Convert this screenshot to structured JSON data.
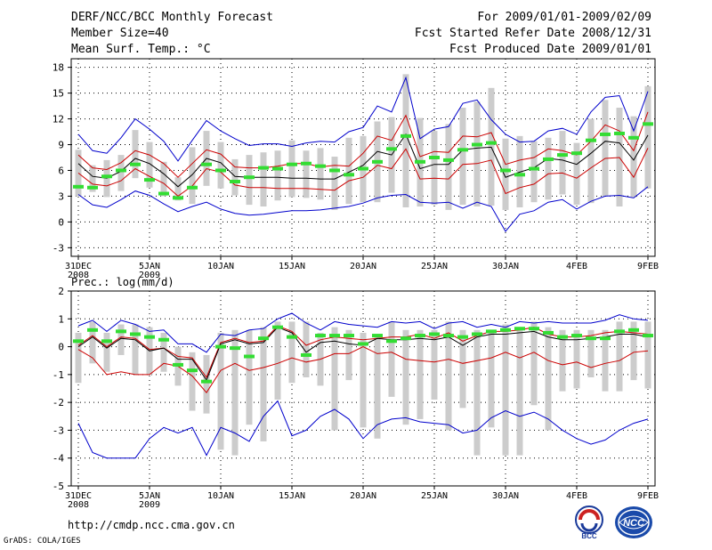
{
  "header": {
    "title": "DERF/NCC/BCC Monthly Forecast",
    "member_size": "Member Size=40",
    "variable": "Mean Surf. Temp.: °C",
    "period": "For 2009/01/01-2009/02/09",
    "refer_date": "Fcst Started Refer Date 2008/12/31",
    "produced_date": "Fcst Produced Date 2009/01/01"
  },
  "footer": {
    "url": "http://cmdp.ncc.cma.gov.cn",
    "grads": "GrADS: COLA/IGES",
    "logo_left_text": "BCC",
    "logo_right_text": "NCC"
  },
  "colors": {
    "ensemble_mean": "#000000",
    "spread_band": "#cc0000",
    "extreme_band": "#0000cc",
    "observed_bar": "#cccccc",
    "climatology_mark": "#33dd33"
  },
  "x_tick_labels": [
    "31DEC\n2008",
    "5JAN\n2009",
    "10JAN",
    "15JAN",
    "20JAN",
    "25JAN",
    "30JAN",
    "4FEB",
    "9FEB"
  ],
  "chart_data": [
    {
      "type": "line",
      "title": "Mean Surf. Temp.: °C",
      "ylim": [
        -4,
        19
      ],
      "yticks": [
        -3,
        0,
        3,
        6,
        9,
        12,
        15,
        18
      ],
      "days": 41,
      "series": [
        {
          "name": "max",
          "values": [
            10.2,
            8.3,
            8.0,
            9.8,
            12.0,
            10.8,
            9.4,
            7.1,
            9.5,
            11.8,
            10.6,
            9.7,
            8.9,
            9.1,
            9.1,
            8.8,
            9.2,
            9.4,
            9.3,
            10.5,
            11.0,
            13.5,
            12.8,
            16.8,
            9.7,
            10.8,
            11.1,
            13.8,
            14.2,
            11.9,
            10.2,
            9.3,
            9.4,
            10.6,
            10.9,
            10.2,
            12.8,
            14.5,
            14.7,
            10.6,
            15.2
          ]
        },
        {
          "name": "upper",
          "values": [
            7.8,
            6.3,
            6.1,
            6.9,
            8.3,
            7.8,
            6.8,
            5.2,
            6.8,
            8.4,
            7.9,
            6.4,
            6.3,
            6.3,
            6.5,
            6.8,
            6.8,
            6.4,
            6.6,
            6.5,
            8.0,
            10.0,
            9.5,
            12.4,
            7.6,
            8.2,
            8.1,
            10.0,
            9.9,
            10.4,
            6.7,
            7.2,
            7.5,
            8.5,
            8.3,
            7.8,
            9.4,
            11.3,
            10.6,
            8.3,
            12.8
          ]
        },
        {
          "name": "mean",
          "values": [
            6.8,
            5.3,
            5.1,
            5.9,
            7.4,
            6.8,
            5.6,
            4.1,
            5.5,
            7.4,
            6.9,
            5.3,
            5.2,
            5.2,
            5.2,
            5.1,
            5.1,
            5.0,
            5.0,
            5.8,
            6.6,
            8.2,
            7.8,
            10.2,
            6.2,
            6.7,
            6.7,
            8.4,
            8.6,
            8.7,
            5.2,
            5.8,
            6.3,
            7.4,
            7.2,
            6.7,
            8.0,
            9.4,
            9.2,
            7.2,
            10.1
          ]
        },
        {
          "name": "lower",
          "values": [
            5.7,
            4.4,
            4.2,
            4.8,
            6.2,
            5.3,
            4.5,
            3.0,
            4.2,
            6.2,
            5.8,
            4.3,
            4.0,
            4.0,
            3.9,
            3.9,
            3.9,
            3.8,
            3.7,
            4.8,
            5.2,
            6.6,
            6.2,
            8.5,
            5.0,
            5.1,
            5.0,
            6.7,
            6.8,
            7.2,
            3.3,
            4.0,
            4.4,
            5.6,
            5.7,
            5.1,
            6.3,
            7.4,
            7.5,
            5.2,
            8.6
          ]
        },
        {
          "name": "min",
          "values": [
            3.2,
            2.0,
            1.7,
            2.6,
            3.6,
            3.1,
            2.1,
            1.2,
            1.8,
            2.3,
            1.5,
            1.0,
            0.8,
            0.9,
            1.1,
            1.3,
            1.3,
            1.4,
            1.6,
            1.8,
            2.2,
            2.8,
            3.1,
            3.2,
            2.3,
            2.2,
            2.3,
            1.6,
            2.3,
            1.8,
            -1.1,
            0.9,
            1.3,
            2.3,
            2.6,
            1.5,
            2.4,
            3.0,
            3.1,
            2.8,
            4.1
          ]
        },
        {
          "name": "obs_bar_low",
          "values": [
            3.0,
            3.5,
            2.9,
            3.6,
            5.1,
            4.0,
            3.0,
            2.5,
            2.1,
            4.2,
            3.9,
            3.1,
            2.0,
            1.8,
            2.5,
            2.9,
            2.8,
            2.6,
            1.4,
            2.1,
            2.3,
            2.3,
            3.4,
            1.7,
            1.8,
            2.0,
            1.4,
            2.0,
            1.8,
            1.9,
            1.4,
            1.7,
            2.3,
            2.6,
            3.2,
            2.0,
            2.2,
            3.0,
            1.8,
            2.9,
            3.9
          ]
        },
        {
          "name": "obs_bar_high",
          "values": [
            8.4,
            6.6,
            7.2,
            7.8,
            10.7,
            9.3,
            7.0,
            5.2,
            8.7,
            10.6,
            9.3,
            7.3,
            7.8,
            8.1,
            8.3,
            9.5,
            8.3,
            8.6,
            7.6,
            9.8,
            10.0,
            11.7,
            12.2,
            17.2,
            12.1,
            10.6,
            11.4,
            13.3,
            14.0,
            15.6,
            9.7,
            10.0,
            9.4,
            9.8,
            10.6,
            9.2,
            12.0,
            14.2,
            13.3,
            12.3,
            15.8
          ]
        },
        {
          "name": "climatology",
          "values": [
            4.1,
            4.0,
            5.3,
            6.0,
            6.7,
            4.9,
            3.3,
            2.8,
            4.0,
            6.7,
            6.0,
            4.7,
            5.2,
            6.3,
            6.2,
            6.7,
            6.8,
            6.5,
            6.0,
            5.5,
            6.2,
            7.0,
            8.5,
            10.0,
            7.0,
            7.5,
            7.2,
            8.4,
            9.0,
            9.2,
            6.0,
            5.5,
            6.2,
            7.3,
            7.8,
            8.0,
            9.5,
            10.2,
            10.3,
            9.8,
            11.4
          ]
        }
      ]
    },
    {
      "type": "line",
      "title": "Prec.: log(mm/d)",
      "ylim": [
        -5,
        2
      ],
      "yticks": [
        -5,
        -4,
        -3,
        -2,
        -1,
        0,
        1,
        2
      ],
      "days": 41,
      "series": [
        {
          "name": "max",
          "values": [
            0.75,
            0.95,
            0.55,
            0.95,
            0.8,
            0.55,
            0.6,
            0.1,
            0.1,
            -0.2,
            0.45,
            0.4,
            0.6,
            0.65,
            1.0,
            1.2,
            0.85,
            0.6,
            0.9,
            0.8,
            0.75,
            0.7,
            0.9,
            0.85,
            0.9,
            0.65,
            0.85,
            0.9,
            0.7,
            0.8,
            0.7,
            0.9,
            0.85,
            0.9,
            0.85,
            0.85,
            0.85,
            0.95,
            1.15,
            1.0,
            0.95
          ]
        },
        {
          "name": "upper",
          "values": [
            0.05,
            0.4,
            0.0,
            0.35,
            0.3,
            -0.1,
            -0.05,
            -0.35,
            -0.4,
            -1.1,
            0.15,
            0.3,
            0.15,
            0.2,
            0.75,
            0.55,
            0.05,
            0.25,
            0.35,
            0.3,
            0.25,
            0.3,
            0.35,
            0.35,
            0.45,
            0.3,
            0.5,
            0.2,
            0.4,
            0.55,
            0.55,
            0.6,
            0.7,
            0.45,
            0.35,
            0.35,
            0.4,
            0.5,
            0.55,
            0.5,
            0.45
          ]
        },
        {
          "name": "mean",
          "values": [
            0.0,
            0.35,
            -0.05,
            0.3,
            0.25,
            -0.15,
            -0.05,
            -0.45,
            -0.45,
            -1.2,
            0.1,
            0.25,
            0.1,
            0.15,
            0.7,
            0.5,
            -0.2,
            0.15,
            0.2,
            0.1,
            0.05,
            0.3,
            0.25,
            0.25,
            0.3,
            0.25,
            0.35,
            0.05,
            0.35,
            0.45,
            0.45,
            0.5,
            0.55,
            0.35,
            0.25,
            0.25,
            0.3,
            0.35,
            0.45,
            0.45,
            0.35
          ]
        },
        {
          "name": "lower",
          "values": [
            -0.1,
            -0.4,
            -1.0,
            -0.9,
            -1.0,
            -1.0,
            -0.6,
            -0.7,
            -1.05,
            -1.65,
            -0.85,
            -0.6,
            -0.85,
            -0.75,
            -0.6,
            -0.4,
            -0.55,
            -0.45,
            -0.25,
            -0.25,
            0.0,
            -0.25,
            -0.2,
            -0.45,
            -0.5,
            -0.55,
            -0.45,
            -0.6,
            -0.5,
            -0.4,
            -0.2,
            -0.4,
            -0.2,
            -0.5,
            -0.65,
            -0.55,
            -0.75,
            -0.6,
            -0.5,
            -0.2,
            -0.15
          ]
        },
        {
          "name": "min",
          "values": [
            -2.75,
            -3.8,
            -4.0,
            -4.0,
            -4.0,
            -3.3,
            -2.9,
            -3.1,
            -2.9,
            -3.9,
            -2.9,
            -3.1,
            -3.4,
            -2.5,
            -1.95,
            -3.2,
            -3.0,
            -2.5,
            -2.25,
            -2.6,
            -3.3,
            -2.8,
            -2.6,
            -2.55,
            -2.7,
            -2.75,
            -2.8,
            -3.1,
            -3.0,
            -2.55,
            -2.3,
            -2.5,
            -2.35,
            -2.6,
            -3.0,
            -3.3,
            -3.5,
            -3.35,
            -3.0,
            -2.75,
            -2.6
          ]
        },
        {
          "name": "obs_bar_low",
          "values": [
            -1.3,
            -0.6,
            -0.9,
            -0.3,
            -1.0,
            -1.0,
            -0.9,
            -1.4,
            -2.3,
            -2.4,
            -3.7,
            -3.9,
            -2.8,
            -3.4,
            -1.9,
            -1.3,
            -1.1,
            -1.4,
            -3.0,
            -1.2,
            -2.9,
            -3.3,
            -1.8,
            -2.8,
            -2.6,
            -1.9,
            -3.0,
            -2.2,
            -3.9,
            -2.9,
            -3.9,
            -3.9,
            -2.1,
            -3.0,
            -1.6,
            -1.5,
            -1.1,
            -1.6,
            -1.6,
            -1.2,
            -1.5
          ]
        },
        {
          "name": "obs_bar_high",
          "values": [
            0.5,
            0.9,
            0.5,
            0.8,
            0.8,
            0.7,
            0.5,
            0.0,
            -0.2,
            -0.3,
            0.5,
            0.6,
            0.6,
            0.7,
            0.9,
            0.9,
            0.9,
            0.5,
            0.7,
            0.6,
            0.5,
            0.4,
            0.9,
            0.6,
            0.6,
            0.6,
            0.9,
            0.6,
            0.6,
            0.5,
            0.8,
            0.6,
            0.9,
            0.7,
            0.6,
            0.6,
            0.6,
            0.6,
            0.9,
            0.9,
            0.9
          ]
        },
        {
          "name": "climatology",
          "values": [
            0.2,
            0.6,
            0.2,
            0.55,
            0.45,
            0.35,
            0.25,
            -0.65,
            -0.85,
            -1.25,
            0.0,
            -0.05,
            -0.35,
            0.3,
            0.7,
            0.35,
            -0.3,
            0.4,
            0.4,
            0.4,
            0.1,
            0.4,
            0.2,
            0.3,
            0.4,
            0.45,
            0.4,
            0.35,
            0.45,
            0.55,
            0.6,
            0.65,
            0.65,
            0.5,
            0.35,
            0.4,
            0.3,
            0.3,
            0.55,
            0.6,
            0.4
          ]
        }
      ]
    }
  ]
}
